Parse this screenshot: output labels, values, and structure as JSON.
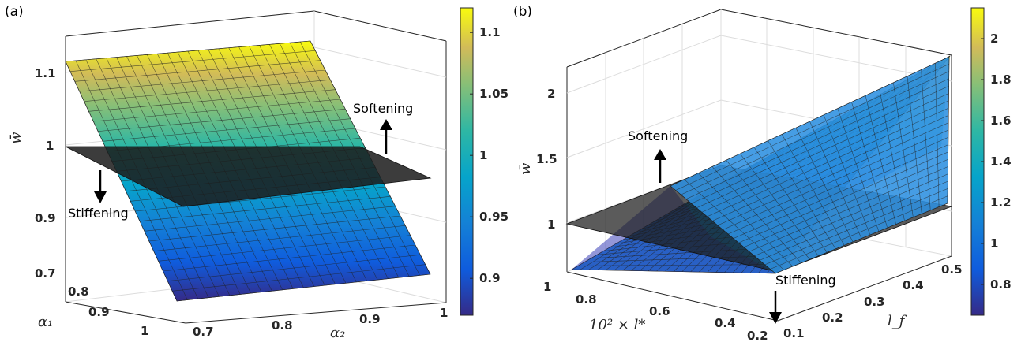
{
  "chart_data": [
    {
      "panel": "(a)",
      "type": "surface",
      "xlabel": "α₂",
      "ylabel": "α₁",
      "zlabel": "w̄",
      "x_ticks": [
        "0.7",
        "0.8",
        "0.9",
        "1"
      ],
      "y_ticks": [
        "0.7",
        "0.8",
        "0.9",
        "1"
      ],
      "z_ticks": [
        "0.9",
        "1",
        "1.1"
      ],
      "xlim": [
        0.7,
        1
      ],
      "ylim": [
        0.7,
        1
      ],
      "zlim": [
        0.86,
        1.12
      ],
      "surface_corners": [
        {
          "alpha1": 0.7,
          "alpha2": 0.7,
          "w": 1.12
        },
        {
          "alpha1": 0.7,
          "alpha2": 1.0,
          "w": 1.12
        },
        {
          "alpha1": 1.0,
          "alpha2": 0.7,
          "w": 0.86
        },
        {
          "alpha1": 1.0,
          "alpha2": 1.0,
          "w": 0.86
        }
      ],
      "reference_plane_w": 1,
      "annotations": [
        "Softening",
        "Stiffening"
      ],
      "colorbar_ticks": [
        "0.9",
        "0.95",
        "1",
        "1.05",
        "1.1"
      ],
      "colorbar_range": [
        0.87,
        1.12
      ],
      "colormap": "parula"
    },
    {
      "panel": "(b)",
      "type": "surface",
      "xlabel": "l_f",
      "ylabel": "10² × l*",
      "zlabel": "w̄",
      "x_ticks": [
        "0.1",
        "0.2",
        "0.3",
        "0.4",
        "0.5"
      ],
      "y_ticks": [
        "0.2",
        "0.4",
        "0.6",
        "0.8",
        "1"
      ],
      "z_ticks": [
        "1",
        "1.5",
        "2"
      ],
      "xlim": [
        0.1,
        0.5
      ],
      "ylim": [
        0.2,
        1
      ],
      "zlim": [
        0.65,
        2.2
      ],
      "surface_corners": [
        {
          "lf": 0.1,
          "l_star": 0.2,
          "w": 1.01
        },
        {
          "lf": 0.1,
          "l_star": 1.0,
          "w": 0.72
        },
        {
          "lf": 0.5,
          "l_star": 0.2,
          "w": 1.18
        },
        {
          "lf": 0.5,
          "l_star": 1.0,
          "w": 2.15
        }
      ],
      "reference_plane_w": 1,
      "annotations": [
        "Softening",
        "Stiffening"
      ],
      "colorbar_ticks": [
        "0.8",
        "1",
        "1.2",
        "1.4",
        "1.6",
        "1.8",
        "2"
      ],
      "colorbar_range": [
        0.65,
        2.15
      ],
      "colormap": "parula"
    }
  ]
}
